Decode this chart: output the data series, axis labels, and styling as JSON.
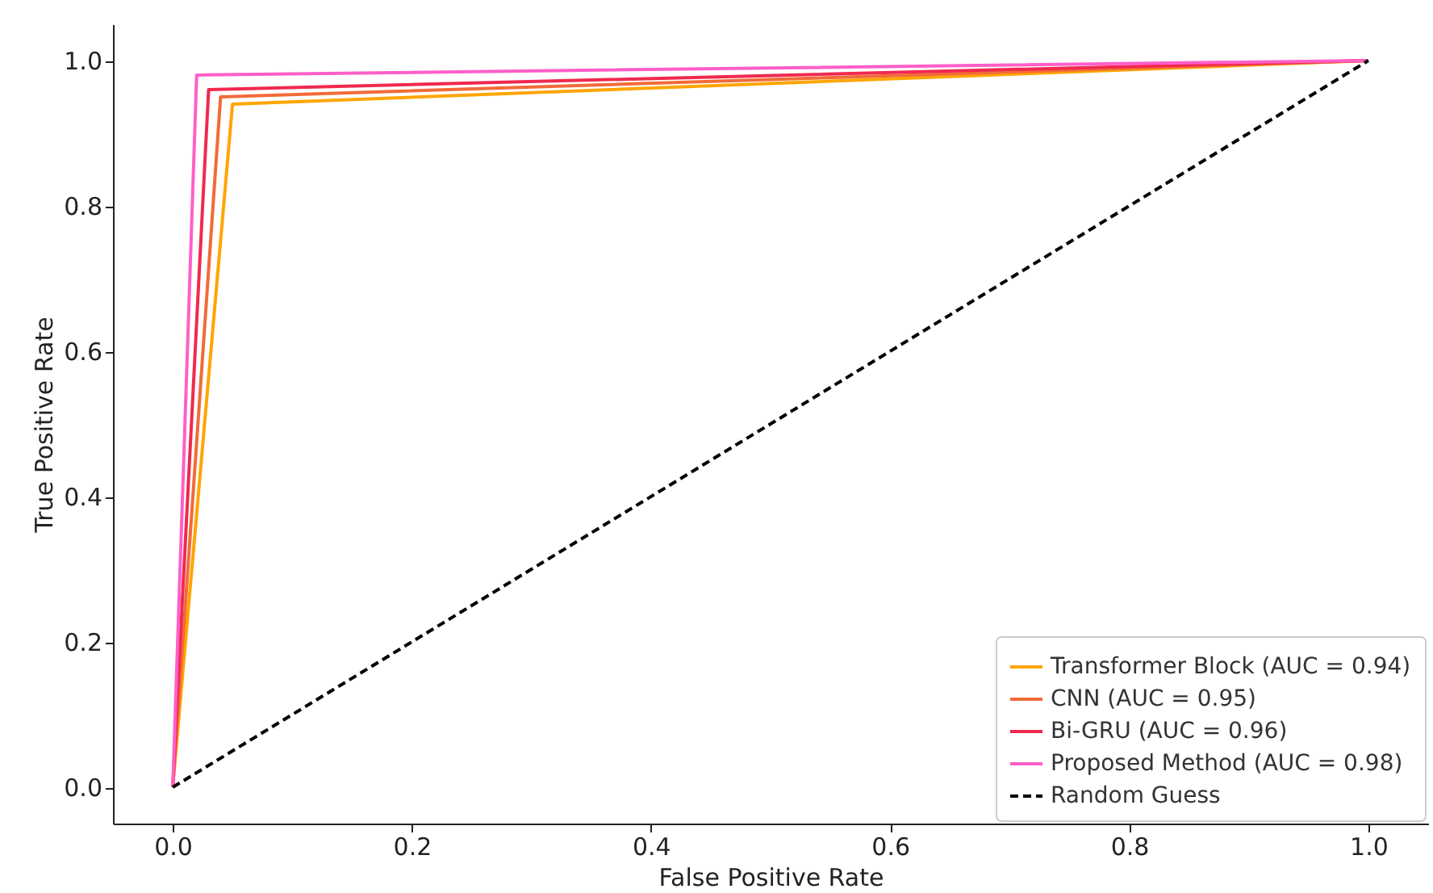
{
  "chart_data": {
    "type": "line",
    "xlabel": "False Positive Rate",
    "ylabel": "True Positive Rate",
    "xlim": [
      -0.05,
      1.05
    ],
    "ylim": [
      -0.05,
      1.05
    ],
    "xticks": [
      {
        "value": 0,
        "label": "0.0"
      },
      {
        "value": 0.2,
        "label": "0.2"
      },
      {
        "value": 0.4,
        "label": "0.4"
      },
      {
        "value": 0.6,
        "label": "0.6"
      },
      {
        "value": 0.8,
        "label": "0.8"
      },
      {
        "value": 1,
        "label": "1.0"
      }
    ],
    "yticks": [
      {
        "value": 0,
        "label": "0.0"
      },
      {
        "value": 0.2,
        "label": "0.2"
      },
      {
        "value": 0.4,
        "label": "0.4"
      },
      {
        "value": 0.6,
        "label": "0.6"
      },
      {
        "value": 0.8,
        "label": "0.8"
      },
      {
        "value": 1,
        "label": "1.0"
      }
    ],
    "grid": false,
    "legend": "bottom right",
    "marker": "none",
    "series": [
      {
        "name": "Transformer Block (AUC = 0.94)",
        "color": "#ffa500",
        "x": [
          0,
          0.05,
          1
        ],
        "values": [
          0,
          0.94,
          1
        ],
        "line_style": "solid"
      },
      {
        "name": "CNN (AUC = 0.95)",
        "color": "#f26b38",
        "x": [
          0,
          0.04,
          1
        ],
        "values": [
          0,
          0.95,
          1
        ],
        "line_style": "solid"
      },
      {
        "name": "Bi-GRU (AUC = 0.96)",
        "color": "#f0294f",
        "x": [
          0,
          0.03,
          1
        ],
        "values": [
          0,
          0.96,
          1
        ],
        "line_style": "solid"
      },
      {
        "name": "Proposed Method (AUC = 0.98)",
        "color": "#ff5fc8",
        "x": [
          0,
          0.02,
          1
        ],
        "values": [
          0,
          0.98,
          1
        ],
        "line_style": "solid"
      },
      {
        "name": "Random Guess",
        "color": "#000000",
        "x": [
          0,
          1
        ],
        "values": [
          0,
          1
        ],
        "line_style": "dashed"
      }
    ]
  }
}
